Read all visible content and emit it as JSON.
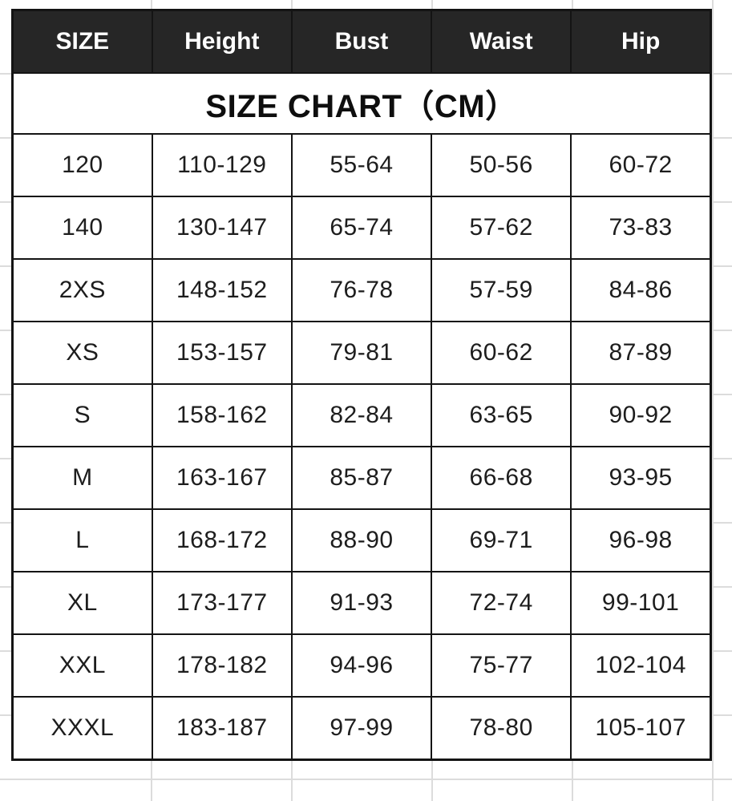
{
  "title": "SIZE CHART（CM）",
  "chart_data": {
    "type": "table",
    "title": "SIZE CHART（CM）",
    "units": "CM",
    "columns": [
      "SIZE",
      "Height",
      "Bust",
      "Waist",
      "Hip"
    ],
    "rows": [
      [
        "120",
        "110-129",
        "55-64",
        "50-56",
        "60-72"
      ],
      [
        "140",
        "130-147",
        "65-74",
        "57-62",
        "73-83"
      ],
      [
        "2XS",
        "148-152",
        "76-78",
        "57-59",
        "84-86"
      ],
      [
        "XS",
        "153-157",
        "79-81",
        "60-62",
        "87-89"
      ],
      [
        "S",
        "158-162",
        "82-84",
        "63-65",
        "90-92"
      ],
      [
        "M",
        "163-167",
        "85-87",
        "66-68",
        "93-95"
      ],
      [
        "L",
        "168-172",
        "88-90",
        "69-71",
        "96-98"
      ],
      [
        "XL",
        "173-177",
        "91-93",
        "72-74",
        "99-101"
      ],
      [
        "XXL",
        "178-182",
        "94-96",
        "75-77",
        "102-104"
      ],
      [
        "XXXL",
        "183-187",
        "97-99",
        "78-80",
        "105-107"
      ]
    ]
  },
  "colors": {
    "header_bg": "#262626",
    "header_text": "#ffffff",
    "border": "#141414",
    "body_text": "#1d1d1d",
    "gridline": "#dcdcdc"
  }
}
